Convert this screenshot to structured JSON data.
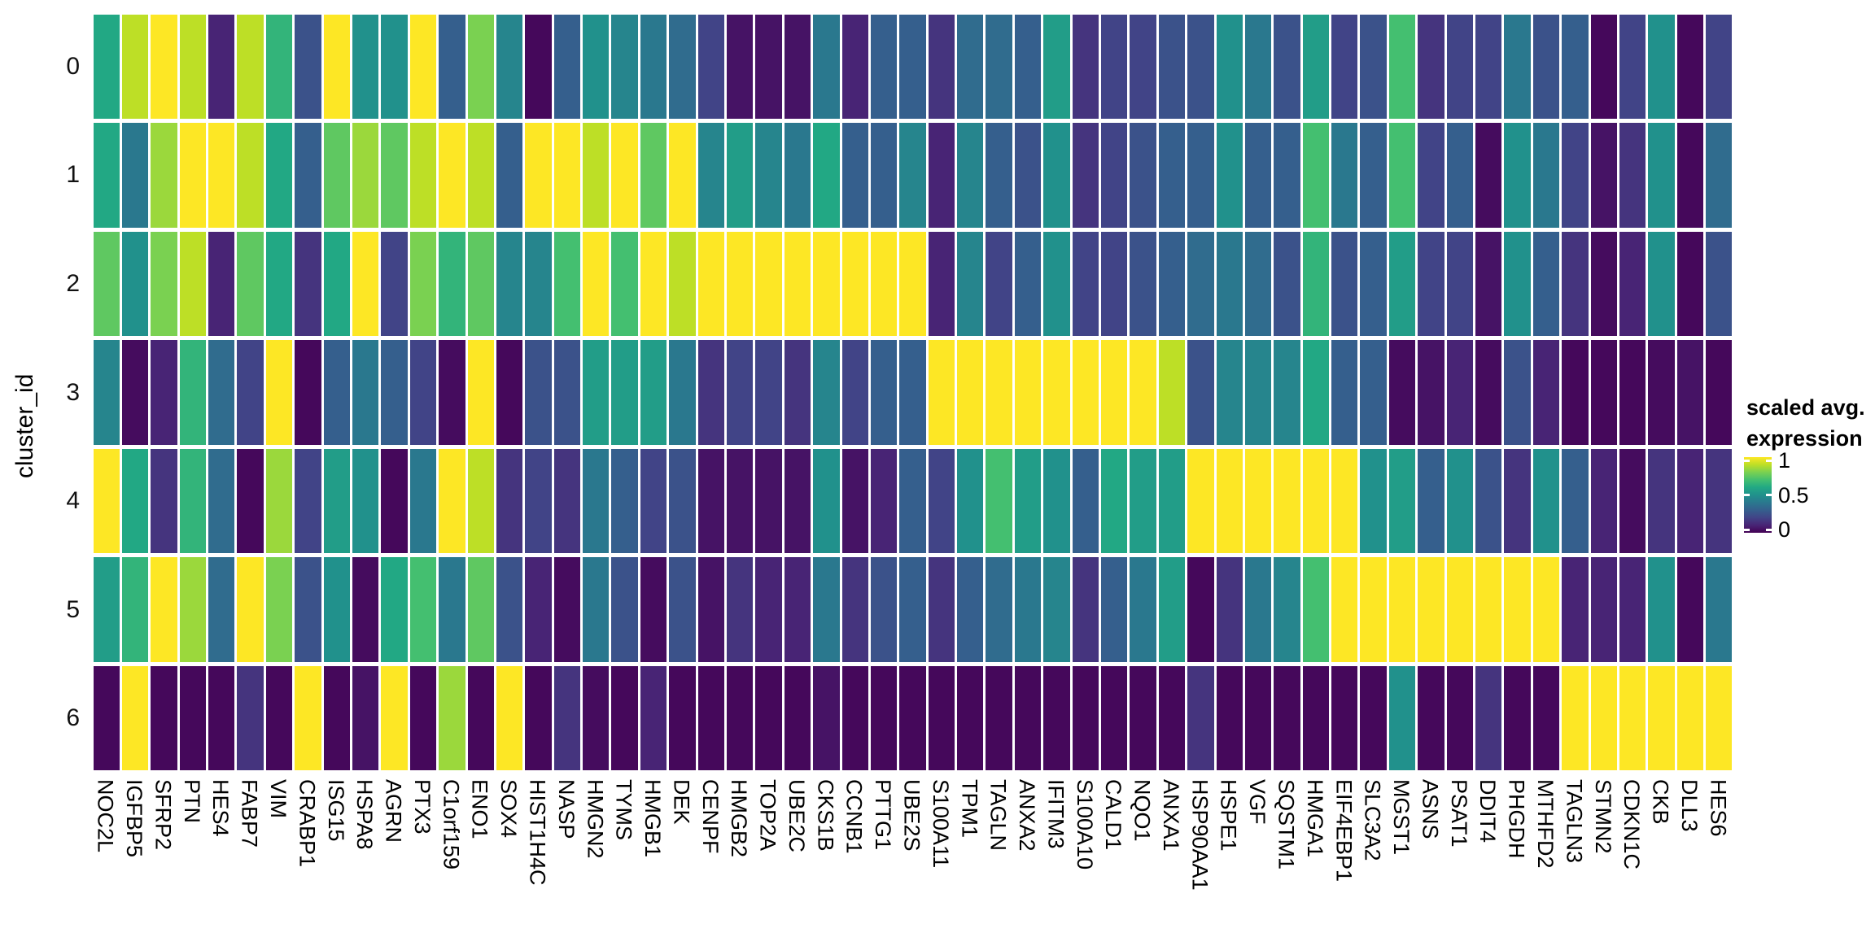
{
  "figure": {
    "background": "#ffffff"
  },
  "y_axis": {
    "title": "cluster_id",
    "tick_labels": [
      "0",
      "1",
      "2",
      "3",
      "4",
      "5",
      "6"
    ]
  },
  "legend": {
    "title_line1": "scaled avg.",
    "title_line2": "expression",
    "ticks": [
      {
        "label": "1",
        "value": 1
      },
      {
        "label": "0.5",
        "value": 0.5
      },
      {
        "label": "0",
        "value": 0
      }
    ]
  },
  "colormap": {
    "name": "viridis",
    "stops": [
      [
        0.0,
        "#440154"
      ],
      [
        0.1,
        "#482475"
      ],
      [
        0.2,
        "#414487"
      ],
      [
        0.3,
        "#355f8d"
      ],
      [
        0.4,
        "#2a788e"
      ],
      [
        0.5,
        "#21918c"
      ],
      [
        0.6,
        "#22a884"
      ],
      [
        0.7,
        "#44bf70"
      ],
      [
        0.8,
        "#7ad151"
      ],
      [
        0.9,
        "#bddf26"
      ],
      [
        1.0,
        "#fde725"
      ]
    ]
  },
  "chart_data": {
    "type": "heatmap",
    "title": "",
    "xlabel": "",
    "ylabel": "cluster_id",
    "legend_title": "scaled avg. expression",
    "colormap": "viridis",
    "value_range": [
      0,
      1
    ],
    "rows": [
      "0",
      "1",
      "2",
      "3",
      "4",
      "5",
      "6"
    ],
    "columns": [
      "NOC2L",
      "IGFBP5",
      "SFRP2",
      "PTN",
      "HES4",
      "FABP7",
      "VIM",
      "CRABP1",
      "ISG15",
      "HSPA8",
      "AGRN",
      "PTX3",
      "C1orf159",
      "ENO1",
      "SOX4",
      "HIST1H4C",
      "NASP",
      "HMGN2",
      "TYMS",
      "HMGB1",
      "DEK",
      "CENPF",
      "HMGB2",
      "TOP2A",
      "UBE2C",
      "CKS1B",
      "CCNB1",
      "PTTG1",
      "UBE2S",
      "S100A11",
      "TPM1",
      "TAGLN",
      "ANXA2",
      "IFITM3",
      "S100A10",
      "CALD1",
      "NQO1",
      "ANXA1",
      "HSP90AA1",
      "HSPE1",
      "VGF",
      "SQSTM1",
      "HMGA1",
      "EIF4EBP1",
      "SLC3A2",
      "MGST1",
      "ASNS",
      "PSAT1",
      "DDIT4",
      "PHGDH",
      "MTHFD2",
      "TAGLN3",
      "STMN2",
      "CDKN1C",
      "CKB",
      "DLL3",
      "HES6"
    ],
    "values": [
      [
        0.6,
        0.9,
        1,
        0.9,
        0.1,
        0.9,
        0.65,
        0.25,
        1,
        0.5,
        0.5,
        1,
        0.3,
        0.8,
        0.45,
        0.02,
        0.3,
        0.5,
        0.45,
        0.4,
        0.35,
        0.2,
        0.05,
        0.05,
        0.05,
        0.4,
        0.1,
        0.3,
        0.3,
        0.15,
        0.35,
        0.35,
        0.3,
        0.55,
        0.15,
        0.2,
        0.2,
        0.25,
        0.25,
        0.5,
        0.4,
        0.25,
        0.55,
        0.2,
        0.25,
        0.7,
        0.15,
        0.2,
        0.2,
        0.4,
        0.25,
        0.3,
        0.02,
        0.2,
        0.5,
        0.02,
        0.2
      ],
      [
        0.6,
        0.4,
        0.85,
        1,
        1,
        0.9,
        0.6,
        0.3,
        0.75,
        0.85,
        0.75,
        0.9,
        1,
        0.9,
        0.3,
        1,
        1,
        0.9,
        1,
        0.75,
        1,
        0.45,
        0.55,
        0.45,
        0.4,
        0.6,
        0.3,
        0.3,
        0.45,
        0.1,
        0.45,
        0.3,
        0.25,
        0.5,
        0.15,
        0.2,
        0.25,
        0.3,
        0.3,
        0.5,
        0.3,
        0.3,
        0.7,
        0.4,
        0.3,
        0.7,
        0.2,
        0.3,
        0.03,
        0.5,
        0.4,
        0.2,
        0.05,
        0.15,
        0.5,
        0.02,
        0.35
      ],
      [
        0.75,
        0.5,
        0.8,
        0.9,
        0.1,
        0.75,
        0.6,
        0.15,
        0.6,
        1,
        0.2,
        0.8,
        0.65,
        0.75,
        0.45,
        0.45,
        0.7,
        1,
        0.7,
        1,
        0.9,
        1,
        1,
        1,
        1,
        1,
        1,
        1,
        1,
        0.1,
        0.45,
        0.2,
        0.3,
        0.5,
        0.2,
        0.2,
        0.25,
        0.3,
        0.35,
        0.4,
        0.35,
        0.25,
        0.65,
        0.25,
        0.3,
        0.55,
        0.2,
        0.2,
        0.05,
        0.5,
        0.3,
        0.15,
        0.03,
        0.1,
        0.5,
        0.02,
        0.25
      ],
      [
        0.45,
        0.03,
        0.1,
        0.65,
        0.35,
        0.2,
        1,
        0.02,
        0.3,
        0.4,
        0.3,
        0.2,
        0.03,
        1,
        0.02,
        0.25,
        0.25,
        0.55,
        0.55,
        0.55,
        0.4,
        0.15,
        0.2,
        0.2,
        0.15,
        0.45,
        0.2,
        0.3,
        0.3,
        1,
        1,
        1,
        1,
        1,
        1,
        1,
        1,
        0.9,
        0.25,
        0.45,
        0.45,
        0.45,
        0.6,
        0.3,
        0.3,
        0.03,
        0.05,
        0.1,
        0.03,
        0.25,
        0.1,
        0.02,
        0.02,
        0.02,
        0.03,
        0.05,
        0.02
      ],
      [
        1,
        0.6,
        0.15,
        0.65,
        0.35,
        0.02,
        0.85,
        0.2,
        0.55,
        0.5,
        0.02,
        0.4,
        1,
        0.9,
        0.15,
        0.2,
        0.15,
        0.4,
        0.3,
        0.2,
        0.25,
        0.05,
        0.05,
        0.05,
        0.05,
        0.5,
        0.05,
        0.1,
        0.3,
        0.2,
        0.5,
        0.7,
        0.55,
        0.5,
        0.3,
        0.6,
        0.55,
        0.55,
        1,
        1,
        1,
        1,
        1,
        1,
        0.5,
        0.55,
        0.3,
        0.5,
        0.25,
        0.15,
        0.5,
        0.3,
        0.1,
        0.03,
        0.15,
        0.1,
        0.15
      ],
      [
        0.55,
        0.65,
        1,
        0.85,
        0.35,
        1,
        0.8,
        0.25,
        0.5,
        0.03,
        0.6,
        0.7,
        0.4,
        0.75,
        0.25,
        0.1,
        0.03,
        0.4,
        0.25,
        0.03,
        0.25,
        0.05,
        0.15,
        0.1,
        0.1,
        0.4,
        0.15,
        0.25,
        0.3,
        0.15,
        0.3,
        0.35,
        0.4,
        0.45,
        0.15,
        0.3,
        0.4,
        0.55,
        0.02,
        0.15,
        0.4,
        0.45,
        0.7,
        1,
        1,
        1,
        1,
        1,
        1,
        1,
        1,
        0.1,
        0.1,
        0.1,
        0.5,
        0.02,
        0.4
      ],
      [
        0.02,
        1,
        0.02,
        0.02,
        0.02,
        0.15,
        0.02,
        1,
        0.02,
        0.05,
        1,
        0.02,
        0.85,
        0.02,
        1,
        0.02,
        0.15,
        0.03,
        0.02,
        0.1,
        0.02,
        0.02,
        0.02,
        0.02,
        0.02,
        0.05,
        0.02,
        0.02,
        0.02,
        0.02,
        0.02,
        0.02,
        0.02,
        0.02,
        0.02,
        0.02,
        0.02,
        0.02,
        0.15,
        0.02,
        0.02,
        0.02,
        0.02,
        0.02,
        0.02,
        0.5,
        0.02,
        0.02,
        0.15,
        0.02,
        0.02,
        1,
        1,
        1,
        1,
        1,
        1
      ]
    ]
  }
}
